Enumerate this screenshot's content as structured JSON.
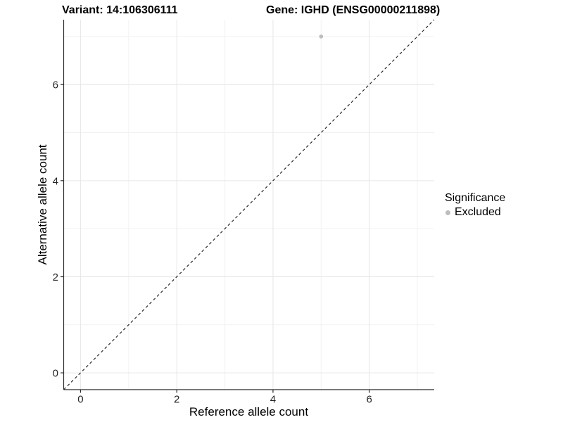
{
  "titles": {
    "left": "Variant: 14:106306111",
    "right": "Gene: IGHD (ENSG00000211898)"
  },
  "axes": {
    "x_label": "Reference allele count",
    "y_label": "Alternative allele count"
  },
  "legend": {
    "title": "Significance",
    "items": [
      {
        "label": "Excluded",
        "color": "#bdbdbd"
      }
    ]
  },
  "colors": {
    "background": "#ffffff",
    "major_grid": "#e6e6e6",
    "minor_grid": "#f2f2f2",
    "axis_line": "#2b2b2b",
    "tick_label": "#262626",
    "reference_line": "#1a1a1a",
    "point": "#bdbdbd"
  },
  "chart_data": {
    "type": "scatter",
    "title": "Variant: 14:106306111 | Gene: IGHD (ENSG00000211898)",
    "xlabel": "Reference allele count",
    "ylabel": "Alternative allele count",
    "xlim": [
      -0.35,
      7.35
    ],
    "ylim": [
      -0.35,
      7.35
    ],
    "x_ticks": [
      0,
      2,
      4,
      6
    ],
    "y_ticks": [
      0,
      2,
      4,
      6
    ],
    "x_minor_gridlines": [
      1,
      3,
      5,
      7
    ],
    "y_minor_gridlines": [
      1,
      3,
      5,
      7
    ],
    "grid": true,
    "legend_position": "right",
    "series": [
      {
        "name": "Excluded",
        "color": "#bdbdbd",
        "points": [
          {
            "x": 5,
            "y": 7
          }
        ]
      }
    ],
    "reference_line": {
      "type": "identity",
      "equation": "y = x",
      "style": "dashed",
      "color": "#1a1a1a"
    }
  }
}
